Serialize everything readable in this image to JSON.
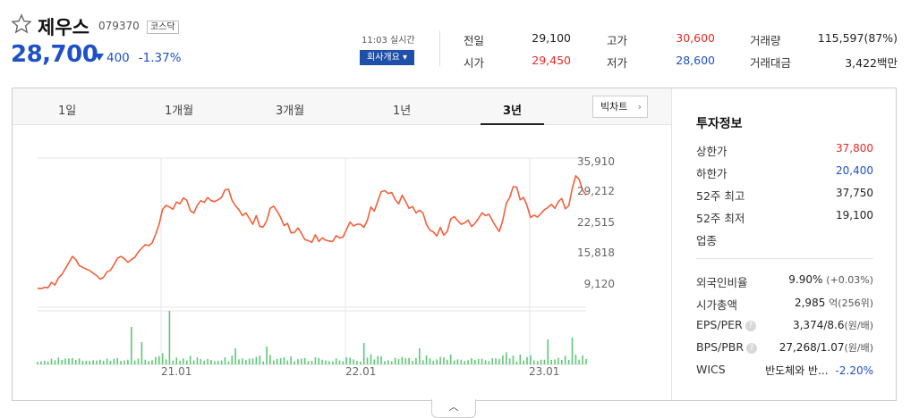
{
  "stock": {
    "name": "제우스",
    "code": "079370",
    "market_badge": "코스닥",
    "price": "28,700",
    "change_amount": "400",
    "change_percent": "-1.37%",
    "realtime_label": "11:03 실시간",
    "company_button_label": "회사개요 ▾"
  },
  "quote": {
    "prev_close": {
      "label": "전일",
      "value": "29,100"
    },
    "open": {
      "label": "시가",
      "value": "29,450"
    },
    "high": {
      "label": "고가",
      "value": "30,600"
    },
    "low": {
      "label": "저가",
      "value": "28,600"
    },
    "volume": {
      "label": "거래량",
      "value": "115,597(87%)"
    },
    "amount": {
      "label": "거래대금",
      "value": "3,422백만"
    }
  },
  "tabs": [
    {
      "label": "1일"
    },
    {
      "label": "1개월"
    },
    {
      "label": "3개월"
    },
    {
      "label": "1년"
    },
    {
      "label": "3년"
    }
  ],
  "active_tab": "3년",
  "big_chart_label": "빅차트",
  "info": {
    "title": "투자정보",
    "upper_limit": {
      "label": "상한가",
      "value": "37,800"
    },
    "lower_limit": {
      "label": "하한가",
      "value": "20,400"
    },
    "high52": {
      "label": "52주 최고",
      "value": "37,750"
    },
    "low52": {
      "label": "52주 최저",
      "value": "19,100"
    },
    "industry": {
      "label": "업종"
    },
    "foreign_ratio": {
      "label": "외국인비율",
      "value": "9.90%",
      "sub": "(+0.03%)"
    },
    "market_cap": {
      "label": "시가총액",
      "value": "2,985",
      "unit": "억",
      "sub": "(256위)"
    },
    "eps_per": {
      "label": "EPS/PER",
      "value": "3,374/8.6",
      "unit": "(원/배)"
    },
    "bps_pbr": {
      "label": "BPS/PBR",
      "value": "27,268/1.07",
      "unit": "(원/배)"
    },
    "wics": {
      "label": "WICS",
      "value": "반도체와 반...",
      "change": "-2.20%"
    }
  },
  "colors": {
    "up": "#e52a26",
    "down": "#1e50c8",
    "line": "#f2603a",
    "volume": "#5cc878"
  },
  "chart_data": {
    "type": "line",
    "yticks": [
      "35,910",
      "29,212",
      "22,515",
      "15,818",
      "9,120"
    ],
    "xticks": [
      "21.01",
      "22.01",
      "23.01"
    ],
    "ylim": [
      9120,
      35910
    ],
    "price_series": [
      8200,
      8100,
      8400,
      8300,
      9500,
      8900,
      10500,
      11200,
      12500,
      13800,
      15200,
      14500,
      13200,
      12800,
      12400,
      12100,
      11500,
      11000,
      10200,
      10600,
      11800,
      12200,
      13400,
      14800,
      15200,
      14700,
      13900,
      14500,
      15000,
      16200,
      17000,
      17800,
      17600,
      18200,
      20100,
      22300,
      25600,
      26500,
      26100,
      25600,
      27200,
      26800,
      28100,
      27600,
      25300,
      24800,
      26500,
      27500,
      27100,
      28200,
      27500,
      27300,
      27700,
      28200,
      29900,
      30000,
      27600,
      26400,
      25500,
      24200,
      24800,
      23600,
      22300,
      24200,
      21800,
      21700,
      23100,
      25800,
      26300,
      25200,
      23800,
      22000,
      22500,
      20400,
      20500,
      21500,
      20300,
      18900,
      18700,
      18300,
      20000,
      18500,
      19300,
      18800,
      18600,
      18500,
      19800,
      19300,
      19500,
      21200,
      22800,
      21900,
      22300,
      22300,
      21600,
      23200,
      26100,
      25200,
      27400,
      29500,
      29700,
      29100,
      29300,
      27800,
      26800,
      28700,
      27300,
      25800,
      26200,
      24800,
      25400,
      24800,
      22300,
      21000,
      20600,
      19700,
      21600,
      19900,
      20700,
      23500,
      24000,
      23100,
      22300,
      22600,
      23200,
      21800,
      22500,
      23600,
      24800,
      24200,
      24500,
      23100,
      21800,
      20700,
      23200,
      26900,
      28200,
      30600,
      30500,
      27700,
      28200,
      26400,
      23800,
      24300,
      23900,
      24700,
      25500,
      26000,
      26700,
      25800,
      27300,
      28000,
      25700,
      26400,
      30200,
      33000,
      32200,
      29800,
      28700
    ]
  }
}
